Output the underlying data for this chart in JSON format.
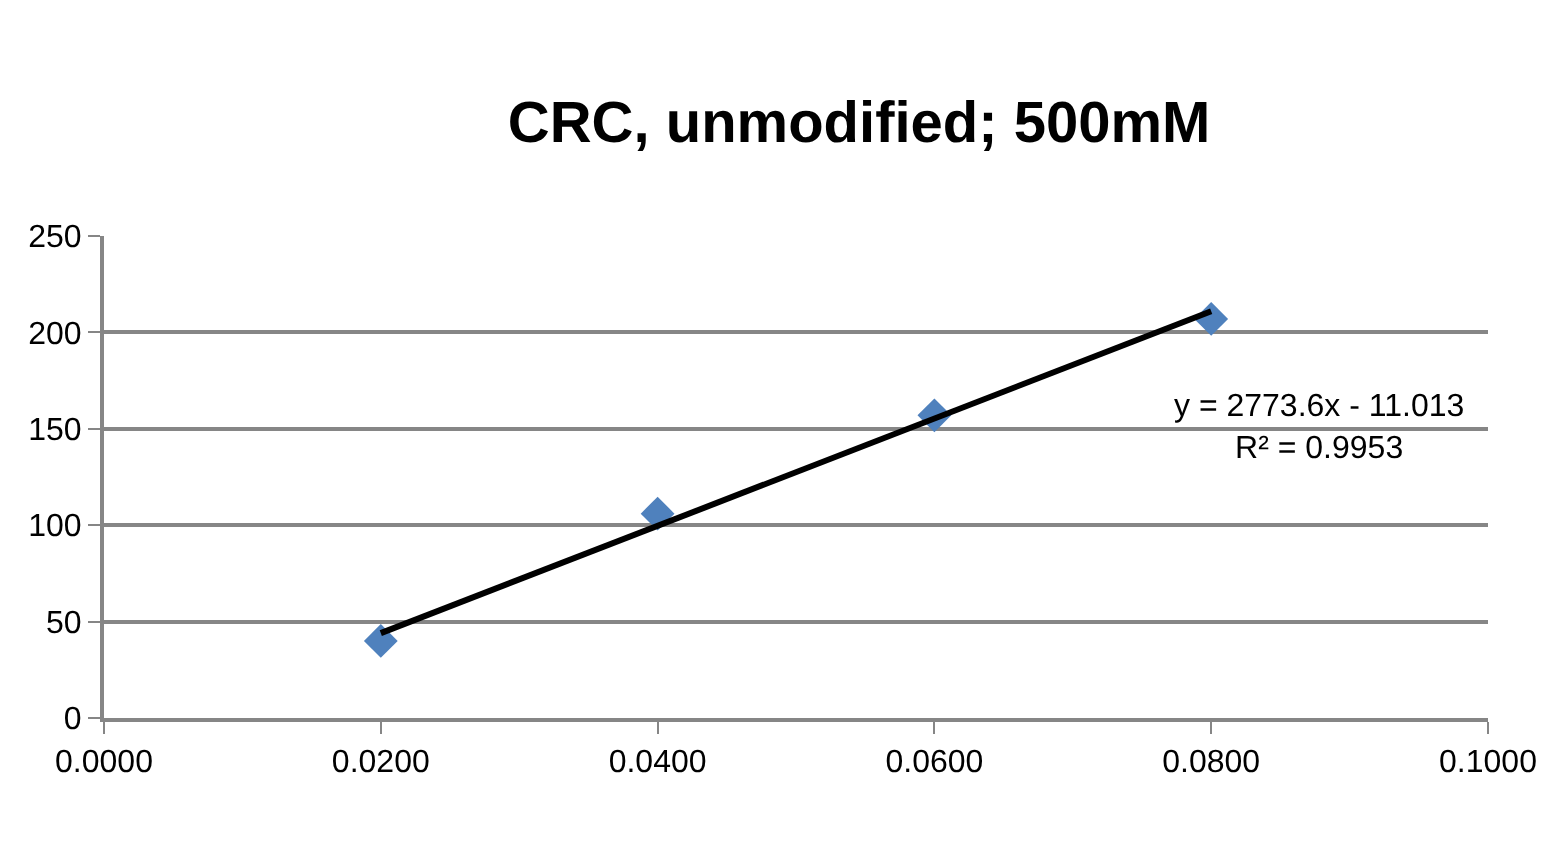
{
  "chart_data": {
    "type": "scatter",
    "title": "CRC, unmodified; 500mM",
    "series": [
      {
        "color": "#4f81bd",
        "marker": "diamond",
        "x": [
          0.02,
          0.04,
          0.06,
          0.08
        ],
        "values": [
          40,
          106,
          157,
          207
        ]
      },
      {
        "type": "line",
        "color": "#000000",
        "marker": "none",
        "x": [
          0.02,
          0.08
        ],
        "values": [
          44,
          211
        ]
      }
    ],
    "annotations": [
      "y = 2773.6x - 11.013\nR² = 0.9953"
    ],
    "xlim": [
      0,
      0.1
    ],
    "xticks": [
      {
        "value": 0,
        "label": "0.0000"
      },
      {
        "value": 0.02,
        "label": "0.0200"
      },
      {
        "value": 0.04,
        "label": "0.0400"
      },
      {
        "value": 0.06,
        "label": "0.0600"
      },
      {
        "value": 0.08,
        "label": "0.0800"
      },
      {
        "value": 0.1,
        "label": "0.1000"
      }
    ],
    "ylim": [
      0,
      250
    ],
    "yticks": [
      0,
      50,
      100,
      150,
      200,
      250
    ],
    "grid": "y"
  }
}
